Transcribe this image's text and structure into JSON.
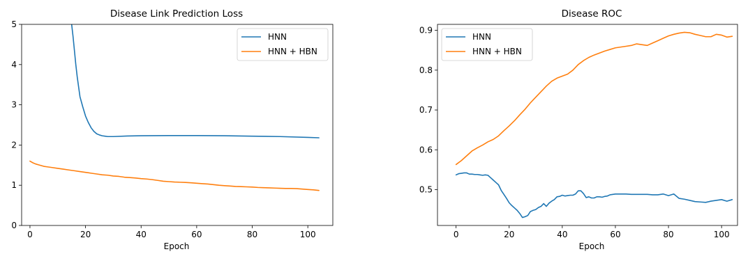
{
  "chart_data": [
    {
      "type": "line",
      "title": "Disease Link Prediction Loss",
      "xlabel": "Epoch",
      "ylabel": "",
      "xlim": [
        -3,
        109
      ],
      "ylim": [
        0,
        5
      ],
      "xticks": [
        0,
        20,
        40,
        60,
        80,
        100
      ],
      "yticks": [
        0,
        1,
        2,
        3,
        4,
        5
      ],
      "ytick_decimals": 0,
      "grid": false,
      "legend": "top-right",
      "series": [
        {
          "name": "HNN",
          "color": "#1f77b4",
          "x": [
            15,
            15.5,
            16,
            16.5,
            17,
            17.5,
            18,
            19,
            20,
            21,
            22,
            23,
            24,
            25,
            26,
            27,
            28,
            30,
            35,
            40,
            50,
            60,
            70,
            80,
            90,
            100,
            104
          ],
          "y": [
            5.0,
            4.7,
            4.35,
            4.0,
            3.7,
            3.45,
            3.2,
            2.95,
            2.72,
            2.56,
            2.43,
            2.34,
            2.28,
            2.25,
            2.23,
            2.22,
            2.21,
            2.21,
            2.225,
            2.23,
            2.235,
            2.235,
            2.23,
            2.22,
            2.21,
            2.19,
            2.18
          ]
        },
        {
          "name": "HNN + HBN",
          "color": "#ff7f0e",
          "x": [
            0,
            1,
            2,
            3,
            4,
            5,
            6,
            8,
            10,
            12,
            14,
            16,
            18,
            20,
            22,
            24,
            26,
            28,
            30,
            32,
            34,
            36,
            38,
            40,
            42,
            44,
            46,
            48,
            50,
            52,
            54,
            56,
            58,
            60,
            62,
            64,
            66,
            68,
            70,
            72,
            74,
            76,
            78,
            80,
            82,
            84,
            86,
            88,
            90,
            92,
            94,
            96,
            98,
            100,
            102,
            104
          ],
          "y": [
            1.6,
            1.56,
            1.53,
            1.51,
            1.49,
            1.47,
            1.46,
            1.44,
            1.42,
            1.4,
            1.38,
            1.36,
            1.34,
            1.32,
            1.3,
            1.28,
            1.26,
            1.25,
            1.23,
            1.22,
            1.2,
            1.19,
            1.18,
            1.165,
            1.155,
            1.14,
            1.12,
            1.1,
            1.09,
            1.08,
            1.075,
            1.07,
            1.06,
            1.05,
            1.04,
            1.03,
            1.015,
            1.0,
            0.99,
            0.98,
            0.97,
            0.965,
            0.96,
            0.955,
            0.945,
            0.94,
            0.935,
            0.93,
            0.925,
            0.92,
            0.92,
            0.915,
            0.905,
            0.895,
            0.885,
            0.87
          ]
        }
      ]
    },
    {
      "type": "line",
      "title": "Disease ROC",
      "xlabel": "Epoch",
      "ylabel": "",
      "xlim": [
        -7,
        106
      ],
      "ylim": [
        0.41,
        0.915
      ],
      "xticks": [
        0,
        20,
        40,
        60,
        80,
        100
      ],
      "yticks": [
        0.5,
        0.6,
        0.7,
        0.8,
        0.9
      ],
      "ytick_decimals": 1,
      "grid": false,
      "legend": "top-left",
      "series": [
        {
          "name": "HNN",
          "color": "#1f77b4",
          "x": [
            0,
            1,
            2,
            3,
            4,
            5,
            6,
            7,
            8,
            9,
            10,
            11,
            12,
            13,
            14,
            15,
            16,
            17,
            18,
            19,
            20,
            21,
            22,
            23,
            24,
            25,
            26,
            27,
            28,
            29,
            30,
            31,
            32,
            33,
            34,
            35,
            36,
            37,
            38,
            39,
            40,
            41,
            42,
            43,
            44,
            45,
            46,
            47,
            48,
            49,
            50,
            51,
            52,
            53,
            54,
            55,
            56,
            57,
            58,
            60,
            62,
            64,
            66,
            68,
            70,
            72,
            74,
            76,
            78,
            80,
            82,
            84,
            86,
            88,
            90,
            92,
            94,
            96,
            98,
            100,
            102,
            104
          ],
          "y": [
            0.537,
            0.54,
            0.541,
            0.542,
            0.542,
            0.539,
            0.539,
            0.538,
            0.538,
            0.537,
            0.536,
            0.537,
            0.536,
            0.53,
            0.524,
            0.518,
            0.512,
            0.498,
            0.488,
            0.478,
            0.467,
            0.46,
            0.454,
            0.448,
            0.44,
            0.43,
            0.432,
            0.435,
            0.445,
            0.448,
            0.45,
            0.455,
            0.458,
            0.465,
            0.458,
            0.466,
            0.471,
            0.475,
            0.482,
            0.483,
            0.486,
            0.484,
            0.485,
            0.486,
            0.486,
            0.489,
            0.497,
            0.497,
            0.49,
            0.48,
            0.482,
            0.479,
            0.479,
            0.482,
            0.482,
            0.481,
            0.483,
            0.484,
            0.487,
            0.489,
            0.489,
            0.489,
            0.488,
            0.488,
            0.488,
            0.488,
            0.487,
            0.487,
            0.489,
            0.485,
            0.489,
            0.478,
            0.476,
            0.473,
            0.47,
            0.469,
            0.468,
            0.471,
            0.473,
            0.475,
            0.471,
            0.475
          ]
        },
        {
          "name": "HNN + HBN",
          "color": "#ff7f0e",
          "x": [
            0,
            2,
            4,
            6,
            8,
            10,
            12,
            14,
            16,
            18,
            20,
            22,
            24,
            26,
            28,
            30,
            32,
            34,
            36,
            38,
            40,
            42,
            44,
            46,
            48,
            50,
            52,
            54,
            56,
            58,
            60,
            62,
            64,
            66,
            68,
            70,
            72,
            74,
            76,
            78,
            80,
            82,
            84,
            86,
            88,
            90,
            92,
            94,
            96,
            98,
            100,
            102,
            104
          ],
          "y": [
            0.563,
            0.573,
            0.585,
            0.597,
            0.605,
            0.612,
            0.62,
            0.626,
            0.635,
            0.648,
            0.66,
            0.673,
            0.688,
            0.702,
            0.718,
            0.732,
            0.746,
            0.76,
            0.772,
            0.78,
            0.785,
            0.79,
            0.8,
            0.814,
            0.824,
            0.832,
            0.838,
            0.843,
            0.848,
            0.852,
            0.856,
            0.858,
            0.86,
            0.862,
            0.866,
            0.864,
            0.862,
            0.868,
            0.874,
            0.88,
            0.886,
            0.89,
            0.893,
            0.895,
            0.894,
            0.89,
            0.887,
            0.884,
            0.884,
            0.89,
            0.888,
            0.883,
            0.885
          ]
        }
      ]
    }
  ]
}
